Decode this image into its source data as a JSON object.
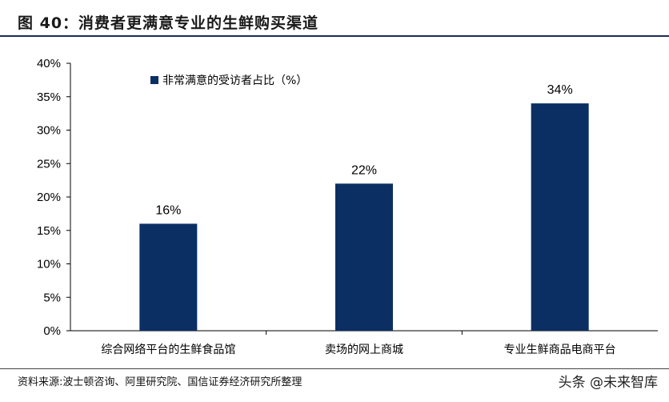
{
  "title": "图 40：消费者更满意专业的生鲜购买渠道",
  "chart_data": {
    "type": "bar",
    "categories": [
      "综合网络平台的生鲜食品馆",
      "卖场的网上商城",
      "专业生鲜商品电商平台"
    ],
    "series": [
      {
        "name": "非常满意的受访者占比（%）",
        "values": [
          16,
          22,
          34
        ],
        "color": "#0b2f63"
      }
    ],
    "data_labels": [
      "16%",
      "22%",
      "34%"
    ],
    "ylim": [
      0,
      40
    ],
    "yticks": [
      0,
      5,
      10,
      15,
      20,
      25,
      30,
      35,
      40
    ],
    "ytick_labels": [
      "0%",
      "5%",
      "10%",
      "15%",
      "20%",
      "25%",
      "30%",
      "35%",
      "40%"
    ],
    "xlabel": "",
    "ylabel": "",
    "grid": false,
    "legend_position": "top-left"
  },
  "source": "资料来源:波士顿咨询、阿里研究院、国信证券经济研究所整理",
  "watermark": "头条 @未来智库"
}
